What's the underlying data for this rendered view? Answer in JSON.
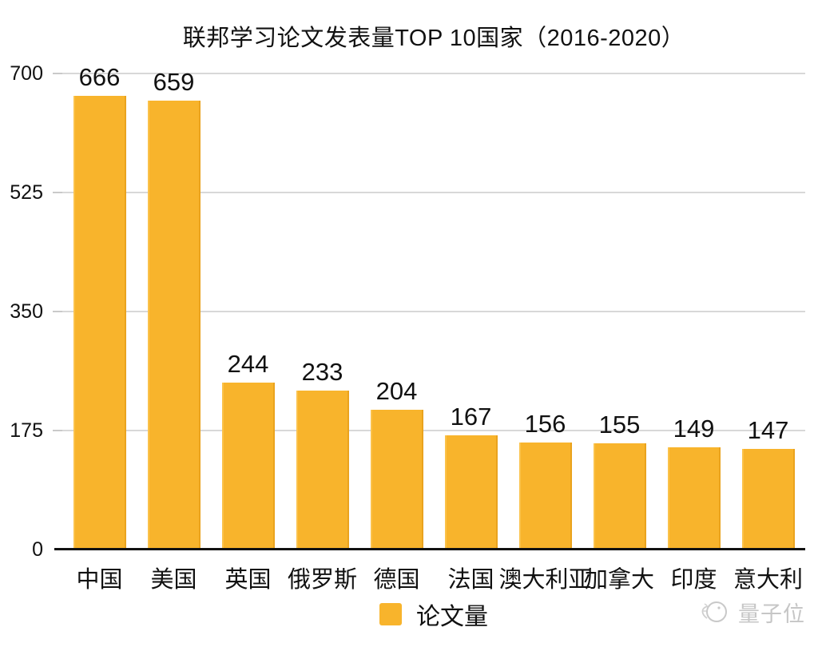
{
  "title": "联邦学习论文发表量TOP 10国家（2016-2020）",
  "chart_data": {
    "type": "bar",
    "title": "联邦学习论文发表量TOP 10国家（2016-2020）",
    "categories": [
      "中国",
      "美国",
      "英国",
      "俄罗斯",
      "德国",
      "法国",
      "澳大利亚",
      "加拿大",
      "印度",
      "意大利"
    ],
    "values": [
      666,
      659,
      244,
      233,
      204,
      167,
      156,
      155,
      149,
      147
    ],
    "series_name": "论文量",
    "xlabel": "",
    "ylabel": "",
    "ylim": [
      0,
      700
    ],
    "yticks": [
      0,
      175,
      350,
      525,
      700
    ],
    "grid": true,
    "bar_labels_shown": true,
    "legend_position": "bottom-center"
  },
  "legend": {
    "label": "论文量"
  },
  "watermark": {
    "text": "量子位"
  },
  "colors": {
    "bar": "#F8B42C",
    "bar_edge": "#E89E1C",
    "gridline": "#D8D8D8",
    "axis_line": "#111111",
    "text": "#111111",
    "watermark": "#C6C6C6",
    "background": "#FFFFFF"
  }
}
